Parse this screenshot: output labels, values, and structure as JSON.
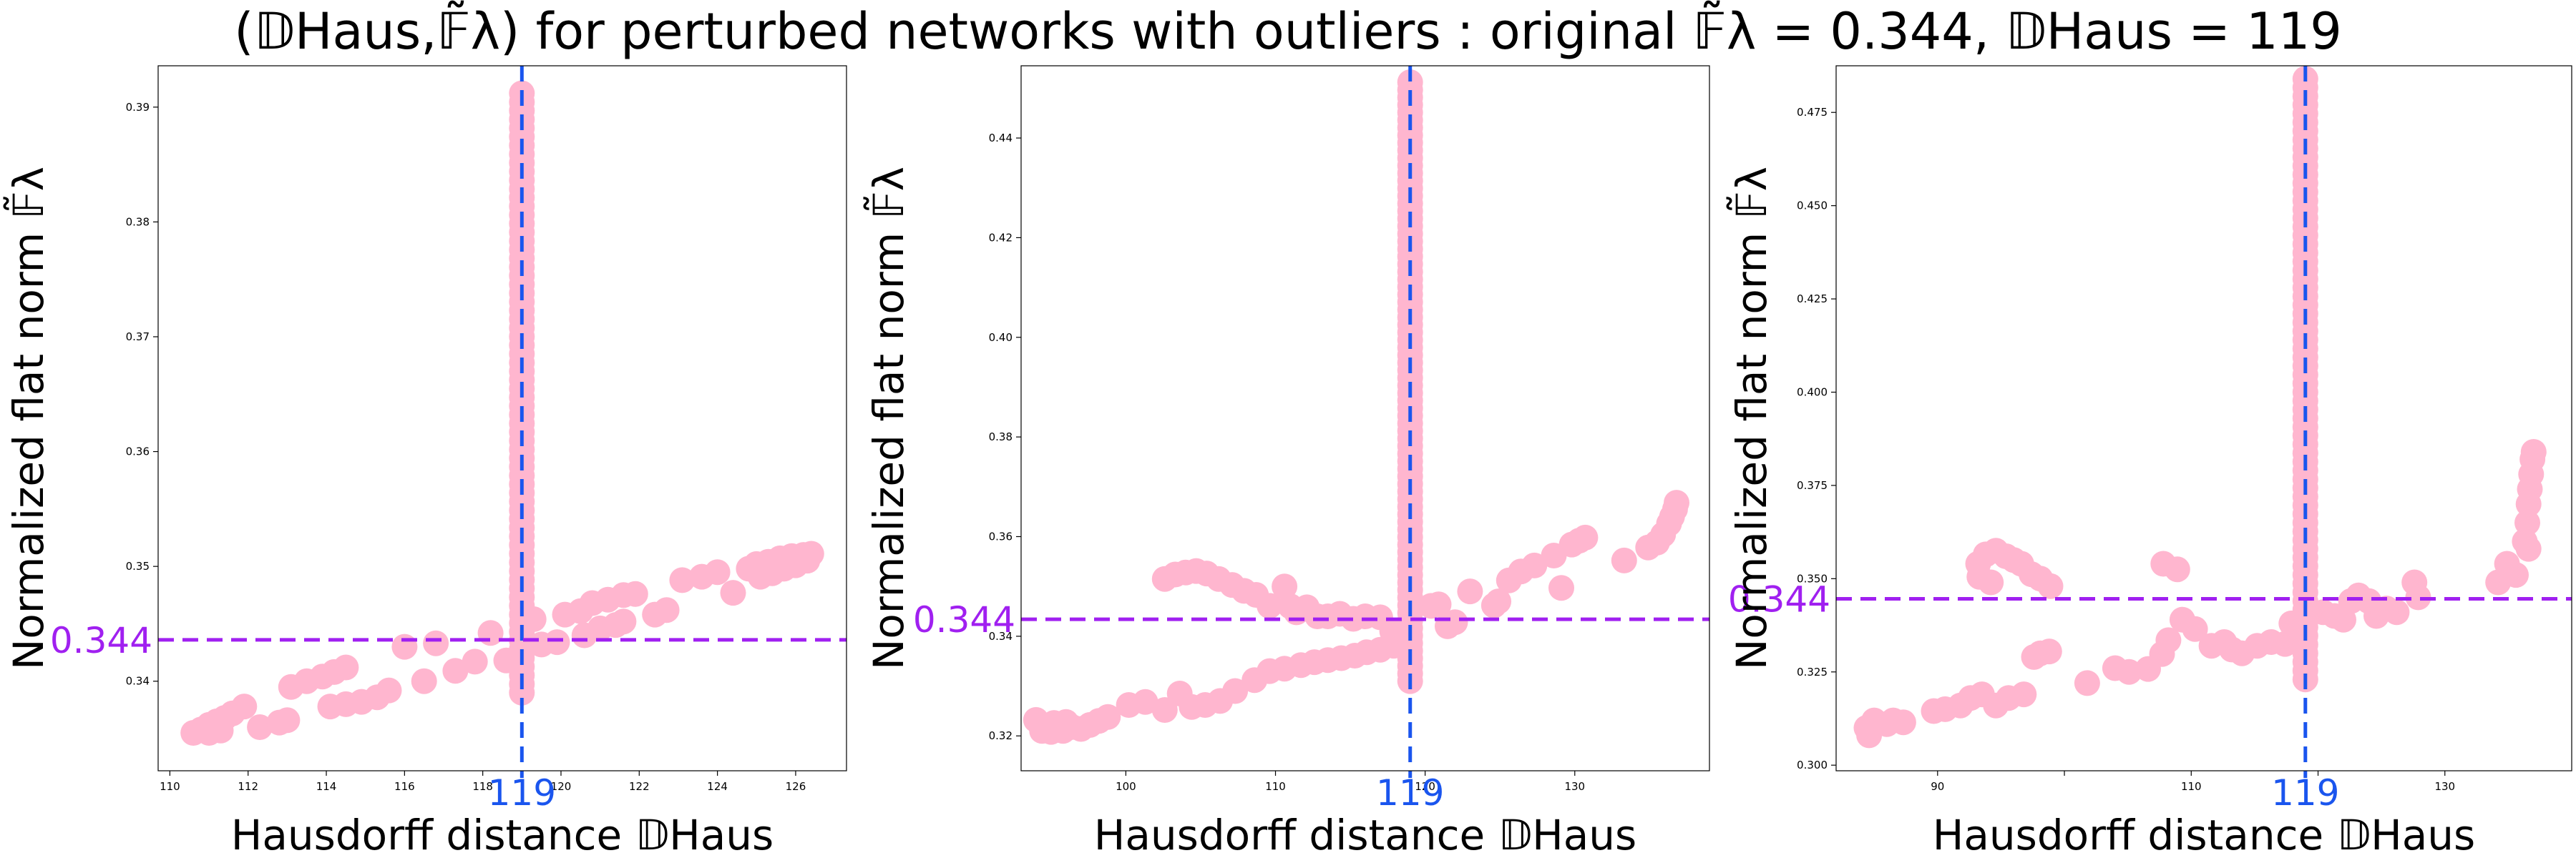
{
  "title": "(𝔻Haus,𝔽̃λ) for perturbed networks with outliers  :  original 𝔽̃λ = 0.344, 𝔻Haus = 119",
  "colors": {
    "points": "#ffb6cf",
    "vertical_ref": "#1a55ee",
    "horizontal_ref": "#a020f0",
    "frame": "#000000"
  },
  "chart_data": [
    {
      "type": "scatter",
      "xlabel": "Hausdorff distance 𝔻Haus",
      "ylabel": "Normalized flat norm 𝔽̃λ",
      "xlim": [
        109.7,
        127.3
      ],
      "ylim": [
        0.3322,
        0.3936
      ],
      "xticks": [
        110,
        112,
        114,
        116,
        118,
        120,
        122,
        124,
        126
      ],
      "xtick_labels": [
        "110",
        "112",
        "114",
        "116",
        "118",
        "120",
        "122",
        "124",
        "126"
      ],
      "yticks": [
        0.34,
        0.35,
        0.36,
        0.37,
        0.38,
        0.39
      ],
      "ytick_labels": [
        "0.34",
        "0.35",
        "0.36",
        "0.37",
        "0.38",
        "0.39"
      ],
      "ref_x": 119,
      "ref_x_label": "119",
      "ref_y": 0.3436,
      "ref_y_label": "0.344",
      "vertical_cluster": {
        "x": 119.0,
        "y_min": 0.339,
        "y_max": 0.3912,
        "count": 70
      },
      "points": [
        [
          110.6,
          0.3355
        ],
        [
          110.8,
          0.3358
        ],
        [
          111.0,
          0.3362
        ],
        [
          111.2,
          0.3365
        ],
        [
          111.4,
          0.3368
        ],
        [
          111.0,
          0.3355
        ],
        [
          111.3,
          0.3357
        ],
        [
          111.6,
          0.3372
        ],
        [
          111.9,
          0.3378
        ],
        [
          112.3,
          0.336
        ],
        [
          112.8,
          0.3364
        ],
        [
          113.0,
          0.3366
        ],
        [
          113.1,
          0.3395
        ],
        [
          113.5,
          0.34
        ],
        [
          113.9,
          0.3404
        ],
        [
          114.2,
          0.3408
        ],
        [
          114.5,
          0.3412
        ],
        [
          114.1,
          0.3378
        ],
        [
          114.5,
          0.338
        ],
        [
          114.9,
          0.3382
        ],
        [
          115.3,
          0.3386
        ],
        [
          115.6,
          0.3392
        ],
        [
          116.0,
          0.343
        ],
        [
          116.5,
          0.34
        ],
        [
          116.8,
          0.3433
        ],
        [
          117.3,
          0.3409
        ],
        [
          117.8,
          0.3417
        ],
        [
          118.2,
          0.3442
        ],
        [
          118.6,
          0.3418
        ],
        [
          119.3,
          0.3454
        ],
        [
          119.5,
          0.3432
        ],
        [
          119.9,
          0.3434
        ],
        [
          120.1,
          0.3458
        ],
        [
          120.5,
          0.3461
        ],
        [
          120.6,
          0.344
        ],
        [
          121.0,
          0.3446
        ],
        [
          121.4,
          0.3449
        ],
        [
          121.6,
          0.3452
        ],
        [
          120.8,
          0.3468
        ],
        [
          121.2,
          0.3471
        ],
        [
          121.6,
          0.3475
        ],
        [
          121.9,
          0.3476
        ],
        [
          122.4,
          0.3458
        ],
        [
          122.7,
          0.3462
        ],
        [
          123.1,
          0.3488
        ],
        [
          123.6,
          0.3491
        ],
        [
          124.0,
          0.3495
        ],
        [
          124.4,
          0.3477
        ],
        [
          124.8,
          0.3498
        ],
        [
          125.0,
          0.3502
        ],
        [
          125.3,
          0.3504
        ],
        [
          125.6,
          0.3507
        ],
        [
          125.9,
          0.3509
        ],
        [
          126.2,
          0.351
        ],
        [
          126.4,
          0.3511
        ],
        [
          125.1,
          0.3491
        ],
        [
          125.4,
          0.3494
        ],
        [
          125.7,
          0.3498
        ],
        [
          126.0,
          0.3501
        ],
        [
          126.3,
          0.3505
        ]
      ]
    },
    {
      "type": "scatter",
      "xlabel": "Hausdorff distance 𝔻Haus",
      "ylabel": "Normalized flat norm 𝔽̃λ",
      "xlim": [
        93.0,
        139.0
      ],
      "ylim": [
        0.313,
        0.4545
      ],
      "xticks": [
        100,
        110,
        120,
        130
      ],
      "xtick_labels": [
        "100",
        "110",
        "120",
        "130"
      ],
      "yticks": [
        0.32,
        0.34,
        0.36,
        0.38,
        0.4,
        0.42,
        0.44
      ],
      "ytick_labels": [
        "0.32",
        "0.34",
        "0.36",
        "0.38",
        "0.40",
        "0.42",
        "0.44"
      ],
      "ref_x": 119,
      "ref_x_label": "119",
      "ref_y": 0.3434,
      "ref_y_label": "0.344",
      "vertical_cluster": {
        "x": 119.0,
        "y_min": 0.331,
        "y_max": 0.4512,
        "count": 80
      },
      "points": [
        [
          94.0,
          0.3232
        ],
        [
          94.6,
          0.322
        ],
        [
          95.2,
          0.3226
        ],
        [
          95.8,
          0.321
        ],
        [
          96.4,
          0.3218
        ],
        [
          97.0,
          0.3214
        ],
        [
          97.6,
          0.3222
        ],
        [
          98.2,
          0.323
        ],
        [
          98.8,
          0.3238
        ],
        [
          94.4,
          0.321
        ],
        [
          95.0,
          0.3208
        ],
        [
          96.0,
          0.3228
        ],
        [
          100.2,
          0.3262
        ],
        [
          101.3,
          0.3268
        ],
        [
          102.6,
          0.3252
        ],
        [
          103.6,
          0.3285
        ],
        [
          104.4,
          0.3258
        ],
        [
          105.3,
          0.3262
        ],
        [
          106.3,
          0.327
        ],
        [
          107.3,
          0.329
        ],
        [
          108.6,
          0.3312
        ],
        [
          109.6,
          0.333
        ],
        [
          110.6,
          0.3335
        ],
        [
          111.7,
          0.3342
        ],
        [
          112.6,
          0.3348
        ],
        [
          113.5,
          0.3352
        ],
        [
          114.4,
          0.3356
        ],
        [
          115.3,
          0.3361
        ],
        [
          116.1,
          0.3368
        ],
        [
          117.0,
          0.3373
        ],
        [
          117.9,
          0.3381
        ],
        [
          102.6,
          0.3515
        ],
        [
          103.3,
          0.3524
        ],
        [
          104.0,
          0.3528
        ],
        [
          104.7,
          0.3531
        ],
        [
          105.4,
          0.3526
        ],
        [
          106.2,
          0.3515
        ],
        [
          107.1,
          0.3503
        ],
        [
          107.9,
          0.3491
        ],
        [
          108.7,
          0.3483
        ],
        [
          109.6,
          0.3461
        ],
        [
          110.6,
          0.35
        ],
        [
          111.0,
          0.346
        ],
        [
          111.4,
          0.3448
        ],
        [
          112.1,
          0.3458
        ],
        [
          112.8,
          0.344
        ],
        [
          113.5,
          0.344
        ],
        [
          114.3,
          0.3445
        ],
        [
          115.2,
          0.3435
        ],
        [
          116.0,
          0.344
        ],
        [
          117.0,
          0.3438
        ],
        [
          117.8,
          0.341
        ],
        [
          120.4,
          0.3461
        ],
        [
          120.9,
          0.3464
        ],
        [
          121.5,
          0.342
        ],
        [
          122.0,
          0.3428
        ],
        [
          123.0,
          0.349
        ],
        [
          124.6,
          0.3462
        ],
        [
          124.9,
          0.347
        ],
        [
          125.6,
          0.3512
        ],
        [
          126.4,
          0.353
        ],
        [
          127.3,
          0.3542
        ],
        [
          128.6,
          0.3562
        ],
        [
          129.1,
          0.3497
        ],
        [
          129.8,
          0.3584
        ],
        [
          130.3,
          0.3592
        ],
        [
          130.7,
          0.3598
        ],
        [
          133.3,
          0.3552
        ],
        [
          134.9,
          0.3578
        ],
        [
          135.5,
          0.3588
        ],
        [
          135.9,
          0.3604
        ],
        [
          136.3,
          0.3626
        ],
        [
          136.5,
          0.364
        ],
        [
          136.7,
          0.3655
        ],
        [
          136.8,
          0.3668
        ]
      ]
    },
    {
      "type": "scatter",
      "xlabel": "Hausdorff distance 𝔻Haus",
      "ylabel": "Normalized flat norm 𝔽̃λ",
      "xlim": [
        82.0,
        140.0
      ],
      "ylim": [
        0.2985,
        0.4875
      ],
      "xticks": [
        90,
        100,
        110,
        120,
        130
      ],
      "xtick_labels": [
        "90",
        "",
        "110",
        "",
        "130"
      ],
      "yticks": [
        0.3,
        0.325,
        0.35,
        0.375,
        0.4,
        0.425,
        0.45,
        0.475
      ],
      "ytick_labels": [
        "0.300",
        "0.325",
        "0.350",
        "0.375",
        "0.400",
        "0.425",
        "0.450",
        "0.475"
      ],
      "ref_x": 119,
      "ref_x_label": "119",
      "ref_y": 0.3446,
      "ref_y_label": "0.344",
      "vertical_cluster": {
        "x": 119.0,
        "y_min": 0.323,
        "y_max": 0.484,
        "count": 70
      },
      "points": [
        [
          84.4,
          0.31
        ],
        [
          84.6,
          0.308
        ],
        [
          85.0,
          0.312
        ],
        [
          86.0,
          0.311
        ],
        [
          86.5,
          0.312
        ],
        [
          87.3,
          0.3115
        ],
        [
          89.7,
          0.3145
        ],
        [
          90.6,
          0.315
        ],
        [
          91.8,
          0.316
        ],
        [
          92.6,
          0.318
        ],
        [
          93.5,
          0.319
        ],
        [
          94.6,
          0.316
        ],
        [
          95.6,
          0.318
        ],
        [
          96.8,
          0.319
        ],
        [
          97.6,
          0.329
        ],
        [
          98.1,
          0.33
        ],
        [
          98.8,
          0.3305
        ],
        [
          101.8,
          0.322
        ],
        [
          104.0,
          0.326
        ],
        [
          105.1,
          0.325
        ],
        [
          106.6,
          0.3258
        ],
        [
          107.7,
          0.3298
        ],
        [
          108.2,
          0.3335
        ],
        [
          109.3,
          0.339
        ],
        [
          110.3,
          0.3365
        ],
        [
          111.6,
          0.332
        ],
        [
          112.6,
          0.333
        ],
        [
          113.2,
          0.331
        ],
        [
          114.0,
          0.33
        ],
        [
          115.2,
          0.332
        ],
        [
          116.3,
          0.333
        ],
        [
          117.4,
          0.3325
        ],
        [
          117.9,
          0.338
        ],
        [
          118.2,
          0.3345
        ],
        [
          93.2,
          0.354
        ],
        [
          93.8,
          0.3565
        ],
        [
          94.6,
          0.3575
        ],
        [
          95.4,
          0.356
        ],
        [
          96.0,
          0.355
        ],
        [
          96.6,
          0.354
        ],
        [
          97.4,
          0.3512
        ],
        [
          98.1,
          0.35
        ],
        [
          98.9,
          0.348
        ],
        [
          93.3,
          0.3505
        ],
        [
          94.2,
          0.349
        ],
        [
          107.8,
          0.354
        ],
        [
          108.9,
          0.3525
        ],
        [
          120.4,
          0.341
        ],
        [
          121.3,
          0.34
        ],
        [
          122.0,
          0.339
        ],
        [
          122.6,
          0.344
        ],
        [
          123.2,
          0.3455
        ],
        [
          124.0,
          0.344
        ],
        [
          124.6,
          0.34
        ],
        [
          125.4,
          0.342
        ],
        [
          126.2,
          0.341
        ],
        [
          127.6,
          0.349
        ],
        [
          127.9,
          0.345
        ],
        [
          134.2,
          0.349
        ],
        [
          134.9,
          0.354
        ],
        [
          135.6,
          0.351
        ],
        [
          136.3,
          0.36
        ],
        [
          136.5,
          0.365
        ],
        [
          136.6,
          0.37
        ],
        [
          136.7,
          0.374
        ],
        [
          136.8,
          0.378
        ],
        [
          136.9,
          0.382
        ],
        [
          137.0,
          0.384
        ],
        [
          136.6,
          0.358
        ]
      ]
    }
  ]
}
